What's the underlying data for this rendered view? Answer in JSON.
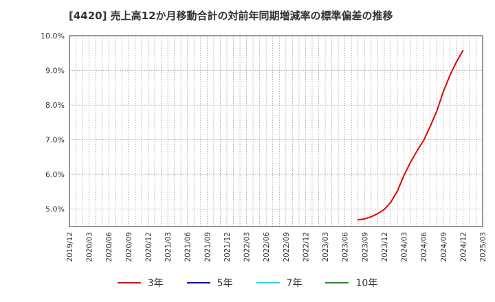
{
  "chart_data": {
    "type": "line",
    "title": "[4420]  売上高12か月移動合計の対前年同期増減率の標準偏差の推移",
    "xlabel": "",
    "ylabel": "",
    "ylim": [
      4.5,
      10.0
    ],
    "yticks": [
      5.0,
      6.0,
      7.0,
      8.0,
      9.0,
      10.0
    ],
    "ytick_labels": [
      "5.0%",
      "6.0%",
      "7.0%",
      "8.0%",
      "9.0%",
      "10.0%"
    ],
    "x_start": "2019/12",
    "x_end": "2025/03",
    "x_tick_labels": [
      "2019/12",
      "2020/03",
      "2020/06",
      "2020/09",
      "2020/12",
      "2021/03",
      "2021/06",
      "2021/09",
      "2021/12",
      "2022/03",
      "2022/06",
      "2022/09",
      "2022/12",
      "2023/03",
      "2023/06",
      "2023/09",
      "2023/12",
      "2024/03",
      "2024/06",
      "2024/09",
      "2024/12",
      "2025/03"
    ],
    "grid": true,
    "legend_position": "bottom",
    "series": [
      {
        "name": "3年",
        "color": "#dd0000",
        "x": [
          "2023/08",
          "2023/09",
          "2023/10",
          "2023/11",
          "2023/12",
          "2024/01",
          "2024/02",
          "2024/03",
          "2024/04",
          "2024/05",
          "2024/06",
          "2024/07",
          "2024/08",
          "2024/09",
          "2024/10",
          "2024/11",
          "2024/12"
        ],
        "values": [
          4.69,
          4.72,
          4.78,
          4.87,
          4.99,
          5.2,
          5.52,
          5.97,
          6.35,
          6.68,
          6.98,
          7.38,
          7.82,
          8.38,
          8.85,
          9.24,
          9.57
        ]
      },
      {
        "name": "5年",
        "color": "#0000cc",
        "x": [],
        "values": []
      },
      {
        "name": "7年",
        "color": "#00e5ff",
        "x": [],
        "values": []
      },
      {
        "name": "10年",
        "color": "#228b22",
        "x": [],
        "values": []
      }
    ]
  }
}
